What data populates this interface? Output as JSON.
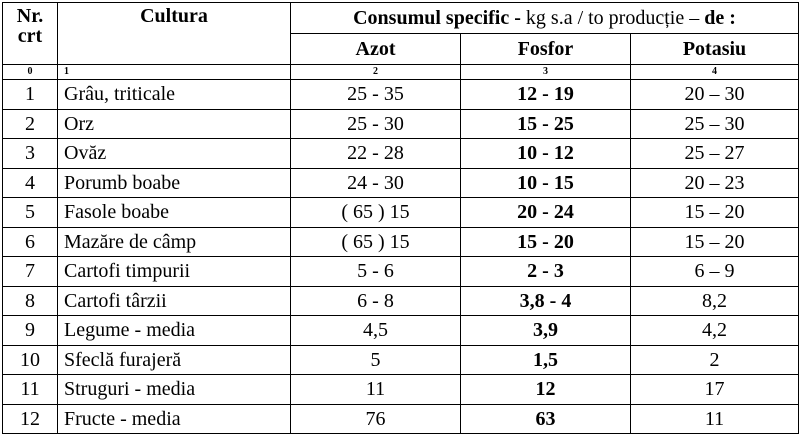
{
  "header": {
    "nr": "Nr.",
    "crt": "crt",
    "cultura": "Cultura",
    "consum_bold_1": "Consumul specific -",
    "consum_normal": " kg s.a / to producție – ",
    "consum_bold_2": "de :",
    "azot": "Azot",
    "fosfor": "Fosfor",
    "potasiu": "Potasiu"
  },
  "index_row": [
    "0",
    "1",
    "2",
    "3",
    "4"
  ],
  "rows": [
    {
      "nr": "1",
      "cultura": "Grâu, triticale",
      "azot": "25 - 35",
      "fosfor": "12 - 19",
      "potasiu": "20 – 30"
    },
    {
      "nr": "2",
      "cultura": "Orz",
      "azot": "25 - 30",
      "fosfor": "15 - 25",
      "potasiu": "25 – 30"
    },
    {
      "nr": "3",
      "cultura": "Ovăz",
      "azot": "22 - 28",
      "fosfor": "10 - 12",
      "potasiu": "25 – 27"
    },
    {
      "nr": "4",
      "cultura": "Porumb boabe",
      "azot": "24 - 30",
      "fosfor": "10 - 15",
      "potasiu": "20 – 23"
    },
    {
      "nr": "5",
      "cultura": "Fasole boabe",
      "azot": "( 65 ) 15",
      "fosfor": "20 - 24",
      "potasiu": "15 – 20"
    },
    {
      "nr": "6",
      "cultura": "Mazăre de câmp",
      "azot": "( 65 ) 15",
      "fosfor": "15 - 20",
      "potasiu": "15 – 20"
    },
    {
      "nr": "7",
      "cultura": "Cartofi timpurii",
      "azot": "5 - 6",
      "fosfor": "2 - 3",
      "potasiu": "6 – 9"
    },
    {
      "nr": "8",
      "cultura": "Cartofi târzii",
      "azot": "6 - 8",
      "fosfor": "3,8 - 4",
      "potasiu": "8,2"
    },
    {
      "nr": "9",
      "cultura": "Legume  - media",
      "azot": "4,5",
      "fosfor": "3,9",
      "potasiu": "4,2"
    },
    {
      "nr": "10",
      "cultura": "Sfeclă furajeră",
      "azot": "5",
      "fosfor": "1,5",
      "potasiu": "2"
    },
    {
      "nr": "11",
      "cultura": "Struguri  - media",
      "azot": "11",
      "fosfor": "12",
      "potasiu": "17"
    },
    {
      "nr": "12",
      "cultura": "Fructe  - media",
      "azot": "76",
      "fosfor": "63",
      "potasiu": "11"
    }
  ]
}
